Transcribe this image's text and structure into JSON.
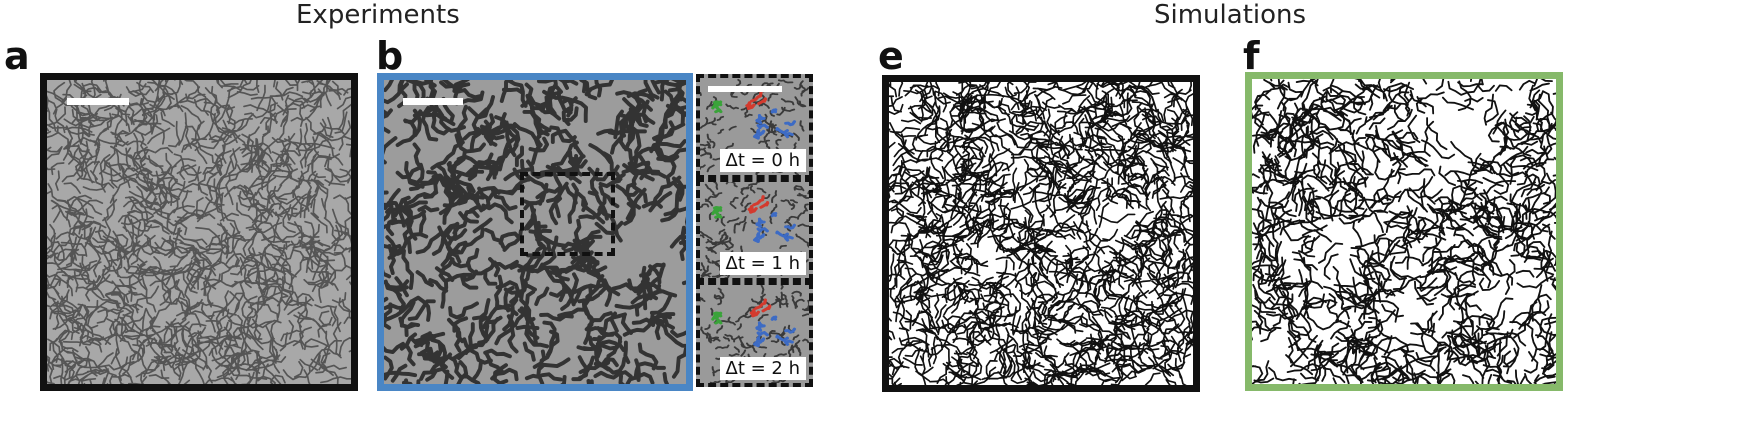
{
  "figure": {
    "groups": [
      {
        "id": "experiments",
        "title": "Experiments"
      },
      {
        "id": "simulations",
        "title": "Simulations"
      }
    ],
    "panels": [
      {
        "id": "a",
        "label": "a",
        "kind": "micrograph",
        "frame_color": "#111111",
        "background": "#a8a8a8",
        "stroke": "#555555"
      },
      {
        "id": "b",
        "label": "b",
        "kind": "micrograph",
        "frame_color": "#4a86c5",
        "background": "#9c9c9c",
        "stroke": "#333333"
      },
      {
        "id": "e",
        "label": "e",
        "kind": "simulation",
        "frame_color": "#111111",
        "background": "#ffffff",
        "stroke": "#111111"
      },
      {
        "id": "f",
        "label": "f",
        "kind": "simulation",
        "frame_color": "#86b96a",
        "background": "#ffffff",
        "stroke": "#111111"
      }
    ],
    "insets": [
      {
        "id": "dt0",
        "label": "Δt = 0 h"
      },
      {
        "id": "dt1",
        "label": "Δt = 1 h"
      },
      {
        "id": "dt2",
        "label": "Δt = 2 h"
      }
    ],
    "cluster_colors": {
      "green": "#3aa33a",
      "red": "#d33a2e",
      "blue": "#3d6bc4"
    },
    "icons": [
      "scale-bar",
      "region-of-interest-box"
    ]
  }
}
